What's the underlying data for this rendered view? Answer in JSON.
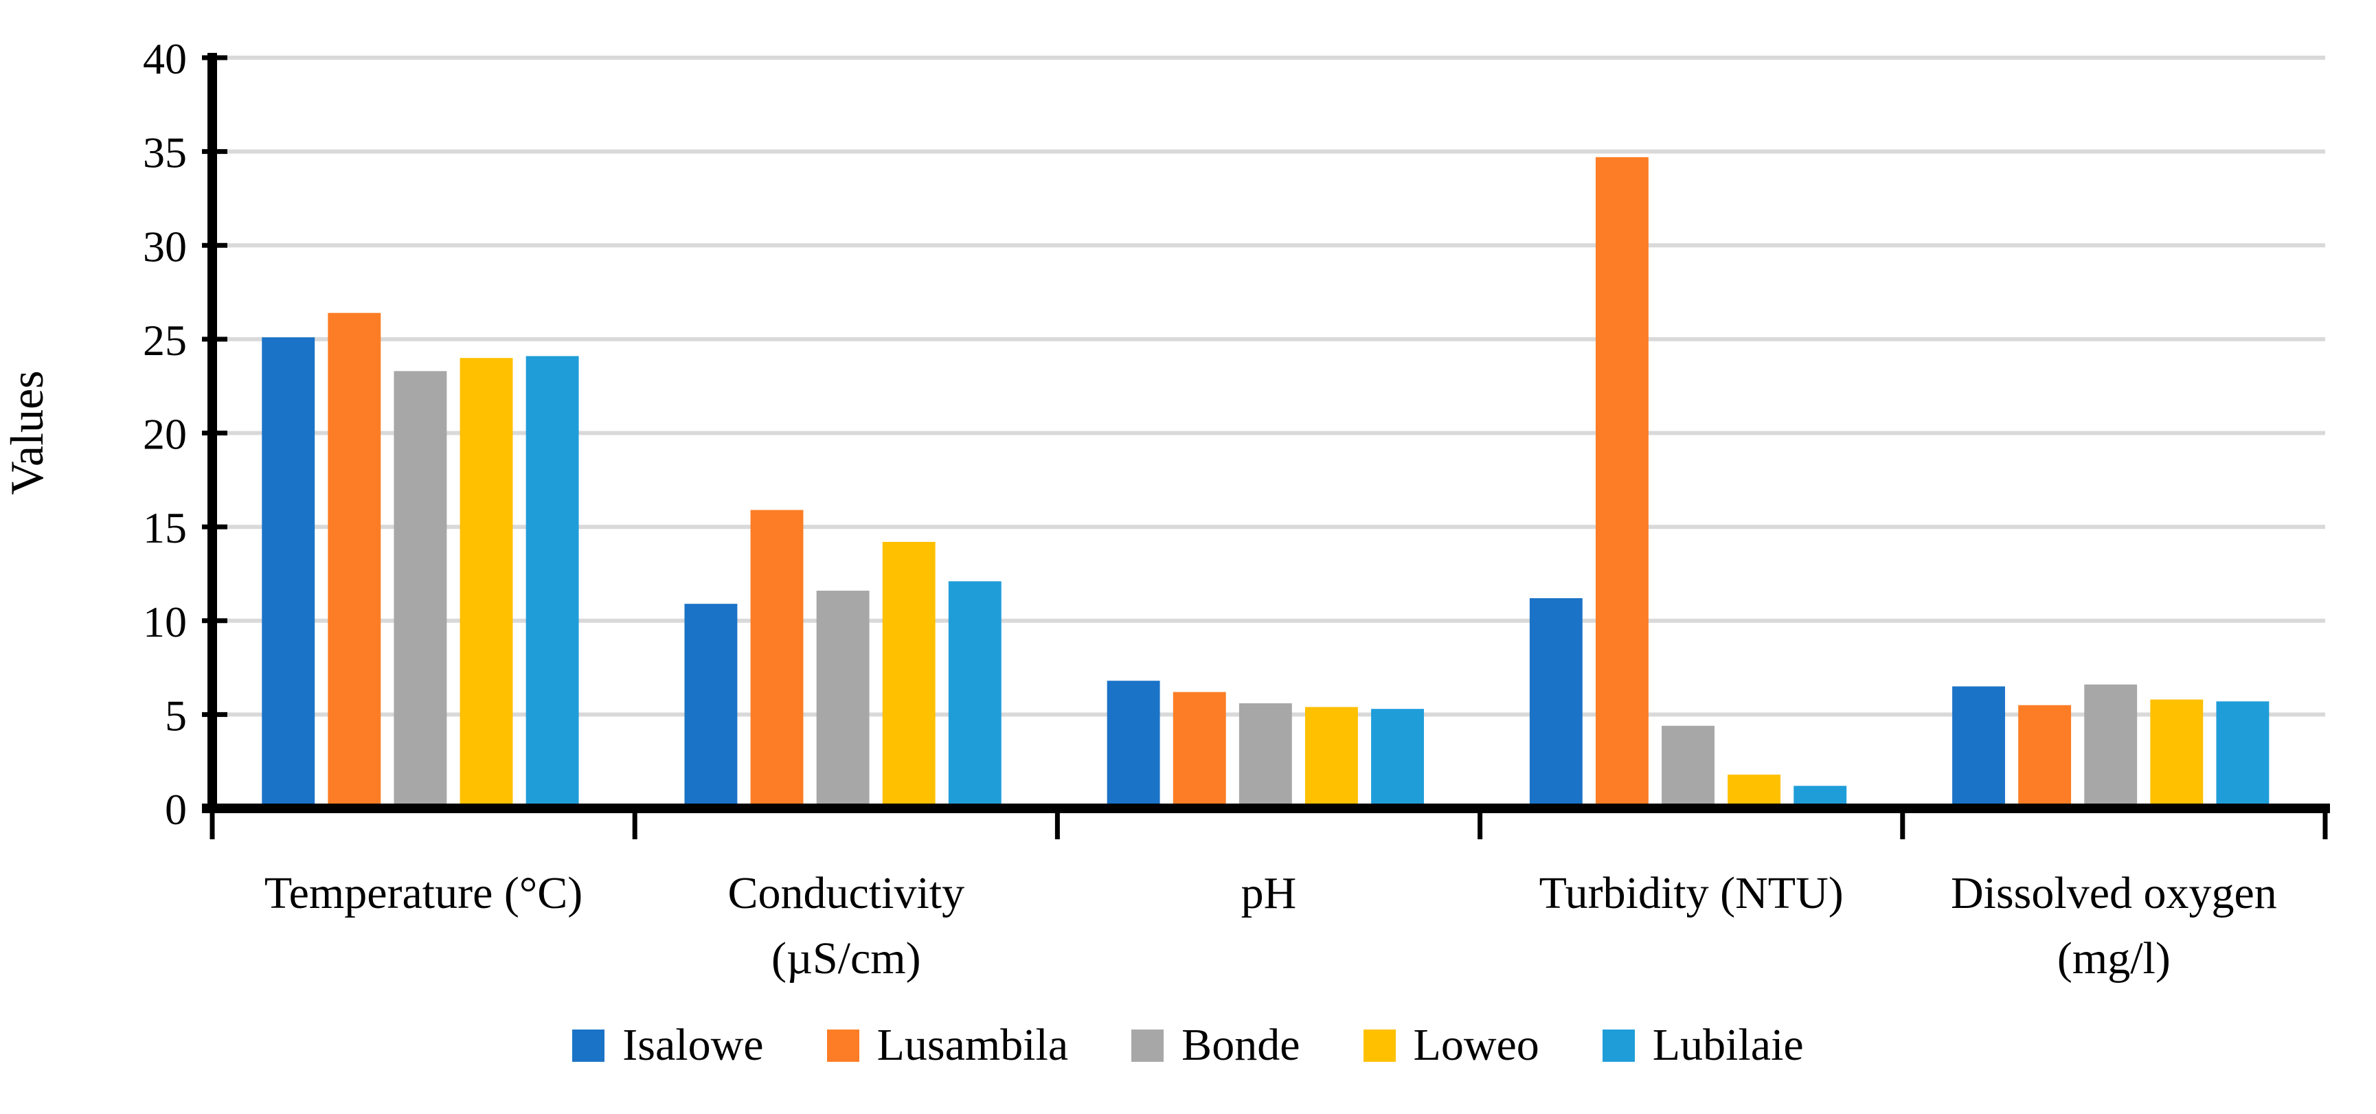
{
  "figure": {
    "background_color": "#FFFFFF",
    "text_color": "#000000"
  },
  "chart_data": {
    "type": "bar",
    "title": "",
    "xlabel": "",
    "ylabel": "Values",
    "ylim": [
      0,
      40
    ],
    "ytick_interval": 5,
    "ytick_labels": [
      "0",
      "5",
      "10",
      "15",
      "20",
      "25",
      "30",
      "35",
      "40"
    ],
    "grid": true,
    "gridline_color": "#D9D9D9",
    "axis_color": "#000000",
    "legend_position": "bottom",
    "categories": [
      "Temperature (°C)",
      "Conductivity (µS/cm)",
      "pH",
      "Turbidity (NTU)",
      "Dissolved oxygen (mg/l)"
    ],
    "category_label_lines": [
      [
        "Temperature (°C)"
      ],
      [
        "Conductivity",
        "(µS/cm)"
      ],
      [
        "pH"
      ],
      [
        "Turbidity (NTU)"
      ],
      [
        "Dissolved oxygen",
        "(mg/l)"
      ]
    ],
    "series": [
      {
        "name": "Isalowe",
        "color": "#1B73C7",
        "values": [
          25.1,
          10.9,
          6.8,
          11.2,
          6.5
        ]
      },
      {
        "name": "Lusambila",
        "color": "#FC7D25",
        "values": [
          26.4,
          15.9,
          6.2,
          34.7,
          5.5
        ]
      },
      {
        "name": "Bonde",
        "color": "#A7A7A7",
        "values": [
          23.3,
          11.6,
          5.6,
          4.4,
          6.6
        ]
      },
      {
        "name": "Loweo",
        "color": "#FFC000",
        "values": [
          24.0,
          14.2,
          5.4,
          1.8,
          5.8
        ]
      },
      {
        "name": "Lubilaie",
        "color": "#1F9DD9",
        "values": [
          24.1,
          12.1,
          5.3,
          1.2,
          5.7
        ]
      }
    ]
  }
}
